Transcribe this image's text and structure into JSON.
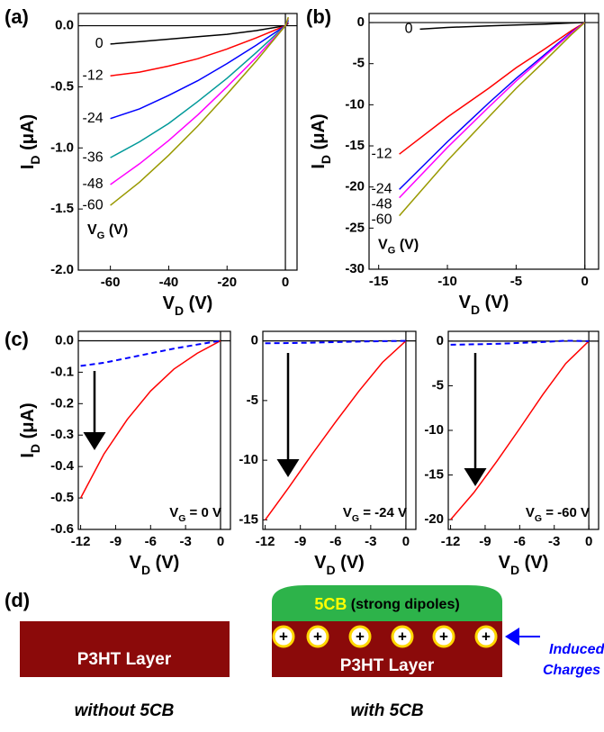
{
  "chart_data": [
    {
      "type": "line",
      "panel": "(a)",
      "x_label": {
        "main": "V",
        "sub": "D",
        "unit": " (V)"
      },
      "y_label": {
        "main": "I",
        "sub": "D",
        "unit": " (μA)"
      },
      "legend_title": {
        "main": "V",
        "sub": "G",
        "unit": " (V)"
      },
      "xlim": [
        -71,
        4
      ],
      "ylim": [
        -2.0,
        0.1
      ],
      "xticks": [
        -60,
        -40,
        -20,
        0
      ],
      "yticks": [
        {
          "value": -2.0,
          "label": "-2.0"
        },
        -1.5,
        {
          "value": -1.0,
          "label": "-1.0"
        },
        -0.5,
        {
          "value": 0.0,
          "label": "0.0"
        }
      ],
      "x": [
        -60,
        -50,
        -40,
        -30,
        -20,
        -10,
        0,
        1
      ],
      "series": [
        {
          "name": "0",
          "color": "#000000",
          "values": [
            -0.15,
            -0.13,
            -0.11,
            -0.09,
            -0.07,
            -0.04,
            0,
            0.02
          ]
        },
        {
          "name": "-12",
          "color": "#ff0000",
          "values": [
            -0.41,
            -0.38,
            -0.33,
            -0.27,
            -0.19,
            -0.1,
            0,
            0.03
          ]
        },
        {
          "name": "-24",
          "color": "#0000ff",
          "values": [
            -0.76,
            -0.68,
            -0.57,
            -0.45,
            -0.31,
            -0.16,
            0,
            0.04
          ]
        },
        {
          "name": "-36",
          "color": "#009999",
          "values": [
            -1.08,
            -0.95,
            -0.8,
            -0.62,
            -0.43,
            -0.22,
            0,
            0.05
          ]
        },
        {
          "name": "-48",
          "color": "#ff00ff",
          "values": [
            -1.3,
            -1.13,
            -0.94,
            -0.73,
            -0.5,
            -0.26,
            0,
            0.06
          ]
        },
        {
          "name": "-60",
          "color": "#999900",
          "values": [
            -1.47,
            -1.28,
            -1.06,
            -0.82,
            -0.56,
            -0.29,
            0,
            0.07
          ]
        }
      ]
    },
    {
      "type": "line",
      "panel": "(b)",
      "x_label": {
        "main": "V",
        "sub": "D",
        "unit": " (V)"
      },
      "y_label": {
        "main": "I",
        "sub": "D",
        "unit": " (μA)"
      },
      "legend_title": {
        "main": "V",
        "sub": "G",
        "unit": " (V)"
      },
      "xlim": [
        -15.7,
        1
      ],
      "ylim": [
        -30,
        1.1
      ],
      "xticks": [
        -15,
        -10,
        -5,
        0
      ],
      "yticks": [
        -30,
        -25,
        -20,
        -15,
        -10,
        -5,
        0
      ],
      "x": [
        -13.5,
        -10,
        -7,
        -5,
        -3,
        -1,
        0
      ],
      "series": [
        {
          "name": "0",
          "color": "#000000",
          "x": [
            -12,
            -10,
            -7,
            -5,
            -3,
            -1,
            0
          ],
          "values": [
            -0.8,
            -0.6,
            -0.4,
            -0.3,
            -0.2,
            -0.05,
            0
          ]
        },
        {
          "name": "-12",
          "color": "#ff0000",
          "values": [
            -16,
            -11.5,
            -8,
            -5.5,
            -3.3,
            -1,
            0
          ]
        },
        {
          "name": "-24",
          "color": "#0000ff",
          "values": [
            -20.3,
            -14.5,
            -9.8,
            -6.8,
            -4,
            -1.2,
            0
          ]
        },
        {
          "name": "-48",
          "color": "#ff00ff",
          "values": [
            -21.3,
            -15.2,
            -10.3,
            -7.1,
            -4.2,
            -1.3,
            0
          ]
        },
        {
          "name": "-60",
          "color": "#999900",
          "values": [
            -23.5,
            -16.8,
            -11.5,
            -8,
            -4.8,
            -1.5,
            0
          ]
        }
      ]
    },
    {
      "type": "line",
      "panel": "(c)",
      "x_label": {
        "main": "V",
        "sub": "D",
        "unit": " (V)"
      },
      "y_label": {
        "main": "I",
        "sub": "D",
        "unit": " (μA)"
      },
      "annotation": {
        "main": "V",
        "sub": "G",
        "unit": " = 0 V"
      },
      "xlim": [
        -12.2,
        0.85
      ],
      "ylim": [
        -0.6,
        0.03
      ],
      "xticks": [
        -12,
        -9,
        -6,
        -3,
        0
      ],
      "yticks": [
        -0.6,
        -0.5,
        -0.4,
        -0.3,
        -0.2,
        -0.1,
        {
          "value": 0.0,
          "label": "0.0"
        }
      ],
      "x": [
        -12,
        -10,
        -8,
        -6,
        -4,
        -2,
        0
      ],
      "series": [
        {
          "color": "#ff0000",
          "values": [
            -0.5,
            -0.36,
            -0.25,
            -0.16,
            -0.09,
            -0.04,
            0
          ]
        },
        {
          "color": "#0000ff",
          "dashed": true,
          "values": [
            -0.08,
            -0.07,
            -0.055,
            -0.04,
            -0.025,
            -0.012,
            0
          ]
        }
      ]
    },
    {
      "type": "line",
      "x_label": {
        "main": "V",
        "sub": "D",
        "unit": " (V)"
      },
      "annotation": {
        "main": "V",
        "sub": "G",
        "unit": " = -24 V"
      },
      "xlim": [
        -12.2,
        0.85
      ],
      "ylim": [
        -15.8,
        0.8
      ],
      "xticks": [
        -12,
        -9,
        -6,
        -3,
        0
      ],
      "yticks": [
        -15,
        -10,
        -5,
        0
      ],
      "x": [
        -12,
        -10,
        -8,
        -6,
        -4,
        -2,
        0
      ],
      "series": [
        {
          "color": "#ff0000",
          "values": [
            -15,
            -12.3,
            -9.5,
            -6.8,
            -4.2,
            -1.8,
            0
          ]
        },
        {
          "color": "#0000ff",
          "dashed": true,
          "values": [
            -0.2,
            -0.18,
            -0.15,
            -0.1,
            -0.06,
            -0.02,
            0
          ]
        }
      ]
    },
    {
      "type": "line",
      "x_label": {
        "main": "V",
        "sub": "D",
        "unit": " (V)"
      },
      "annotation": {
        "main": "V",
        "sub": "G",
        "unit": " = -60 V"
      },
      "xlim": [
        -12.2,
        0.85
      ],
      "ylim": [
        -21.1,
        1.1
      ],
      "xticks": [
        -12,
        -9,
        -6,
        -3,
        0
      ],
      "yticks": [
        -20,
        -15,
        -10,
        -5,
        0
      ],
      "x": [
        -12,
        -10,
        -8,
        -6,
        -4,
        -2,
        0
      ],
      "series": [
        {
          "color": "#ff0000",
          "values": [
            -20,
            -17,
            -13.5,
            -9.8,
            -6,
            -2.5,
            0
          ]
        },
        {
          "color": "#0000ff",
          "dashed": true,
          "values": [
            -0.4,
            -0.35,
            -0.3,
            -0.2,
            -0.1,
            0.05,
            0
          ]
        }
      ]
    }
  ],
  "diagram": {
    "panel": "(d)",
    "left_layer": "P3HT Layer",
    "left_caption": "without 5CB",
    "right_layer": "P3HT Layer",
    "right_caption": "with 5CB",
    "film": {
      "name": "5CB",
      "note": " (strong dipoles)"
    },
    "charges": [
      "+",
      "+",
      "+",
      "+",
      "+",
      "+"
    ],
    "charge_label": [
      "Induced",
      "Charges"
    ]
  }
}
